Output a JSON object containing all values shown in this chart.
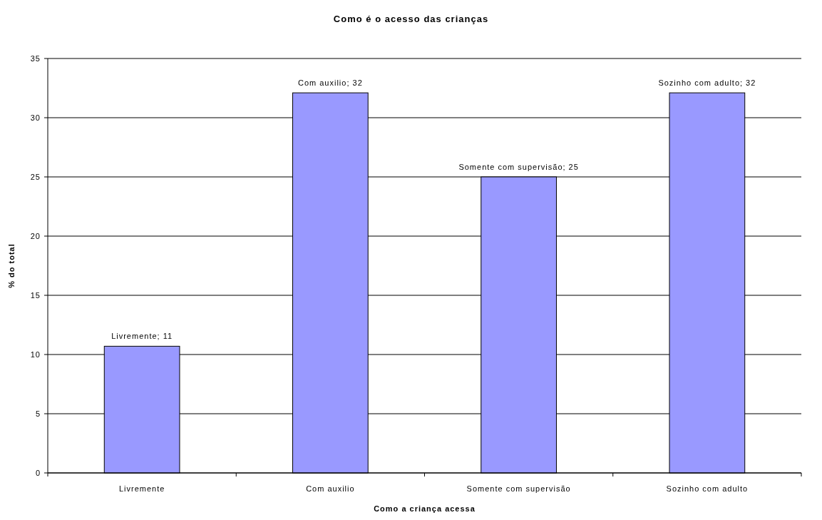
{
  "chart_data": {
    "type": "bar",
    "title": "Como é o acesso das crianças",
    "xlabel": "Como a criança acessa",
    "ylabel": "% do total",
    "categories": [
      "Livremente",
      "Com auxilio",
      "Somente com supervisão",
      "Sozinho com adulto"
    ],
    "values": [
      10.7,
      32.1,
      25,
      32.1
    ],
    "value_labels": [
      "Livremente; 11",
      "Com auxilio; 32",
      "Somente com supervisão; 25",
      "Sozinho com adulto; 32"
    ],
    "color": "#9999ff",
    "ylim": [
      0,
      35
    ],
    "yticks": [
      0,
      5,
      10,
      15,
      20,
      25,
      30,
      35
    ],
    "grid": "y"
  }
}
